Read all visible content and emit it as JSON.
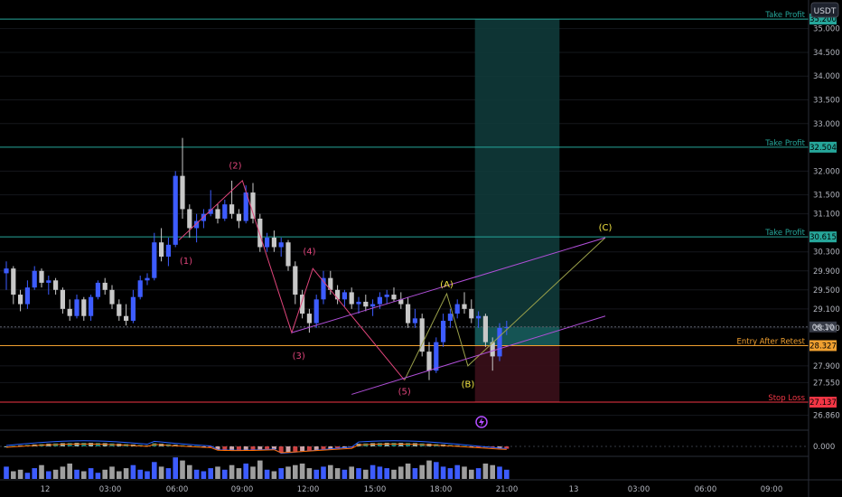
{
  "currency_button": "USDT",
  "chart_data": {
    "type": "candlestick",
    "x_ticks": [
      "12",
      "03:00",
      "06:00",
      "09:00",
      "12:00",
      "15:00",
      "18:00",
      "21:00",
      "13",
      "03:00",
      "06:00",
      "09:00"
    ],
    "y_ticks": [
      35.0,
      34.5,
      34.0,
      33.5,
      33.0,
      32.0,
      31.5,
      31.1,
      30.3,
      29.9,
      29.5,
      29.1,
      28.7,
      27.9,
      27.55,
      26.86
    ],
    "y_tick_labels": [
      "35.000",
      "34.500",
      "34.000",
      "33.500",
      "33.000",
      "32.000",
      "31.500",
      "31.100",
      "30.300",
      "29.900",
      "29.500",
      "29.100",
      "28.700",
      "27.900",
      "27.550",
      "26.860"
    ],
    "current_price": {
      "value": 28.72,
      "label": "06:10"
    },
    "candles": [
      {
        "t": 0,
        "o": 29.85,
        "h": 30.1,
        "l": 29.5,
        "c": 29.95
      },
      {
        "t": 1,
        "o": 29.95,
        "h": 30.0,
        "l": 29.2,
        "c": 29.4
      },
      {
        "t": 2,
        "o": 29.4,
        "h": 29.5,
        "l": 29.05,
        "c": 29.2
      },
      {
        "t": 3,
        "o": 29.2,
        "h": 29.7,
        "l": 29.1,
        "c": 29.55
      },
      {
        "t": 4,
        "o": 29.55,
        "h": 30.0,
        "l": 29.5,
        "c": 29.9
      },
      {
        "t": 5,
        "o": 29.9,
        "h": 29.95,
        "l": 29.55,
        "c": 29.65
      },
      {
        "t": 6,
        "o": 29.65,
        "h": 29.8,
        "l": 29.4,
        "c": 29.7
      },
      {
        "t": 7,
        "o": 29.7,
        "h": 29.75,
        "l": 29.4,
        "c": 29.5
      },
      {
        "t": 8,
        "o": 29.5,
        "h": 29.55,
        "l": 29.0,
        "c": 29.1
      },
      {
        "t": 9,
        "o": 29.1,
        "h": 29.3,
        "l": 28.85,
        "c": 28.95
      },
      {
        "t": 10,
        "o": 28.95,
        "h": 29.4,
        "l": 28.9,
        "c": 29.3
      },
      {
        "t": 11,
        "o": 29.3,
        "h": 29.35,
        "l": 28.85,
        "c": 28.95
      },
      {
        "t": 12,
        "o": 28.95,
        "h": 29.4,
        "l": 28.85,
        "c": 29.35
      },
      {
        "t": 13,
        "o": 29.35,
        "h": 29.7,
        "l": 29.3,
        "c": 29.65
      },
      {
        "t": 14,
        "o": 29.65,
        "h": 29.75,
        "l": 29.4,
        "c": 29.5
      },
      {
        "t": 15,
        "o": 29.5,
        "h": 29.6,
        "l": 29.1,
        "c": 29.2
      },
      {
        "t": 16,
        "o": 29.2,
        "h": 29.3,
        "l": 28.85,
        "c": 28.95
      },
      {
        "t": 17,
        "o": 28.95,
        "h": 29.2,
        "l": 28.75,
        "c": 28.85
      },
      {
        "t": 18,
        "o": 28.85,
        "h": 29.5,
        "l": 28.8,
        "c": 29.35
      },
      {
        "t": 19,
        "o": 29.35,
        "h": 29.8,
        "l": 29.3,
        "c": 29.7
      },
      {
        "t": 20,
        "o": 29.7,
        "h": 29.85,
        "l": 29.6,
        "c": 29.75
      },
      {
        "t": 21,
        "o": 29.75,
        "h": 30.7,
        "l": 29.7,
        "c": 30.5
      },
      {
        "t": 22,
        "o": 30.5,
        "h": 30.8,
        "l": 30.1,
        "c": 30.2
      },
      {
        "t": 23,
        "o": 30.2,
        "h": 30.6,
        "l": 30.0,
        "c": 30.45
      },
      {
        "t": 24,
        "o": 30.45,
        "h": 32.0,
        "l": 30.4,
        "c": 31.9
      },
      {
        "t": 25,
        "o": 31.9,
        "h": 32.7,
        "l": 31.0,
        "c": 31.2
      },
      {
        "t": 26,
        "o": 31.2,
        "h": 31.3,
        "l": 30.6,
        "c": 30.8
      },
      {
        "t": 27,
        "o": 30.8,
        "h": 31.1,
        "l": 30.5,
        "c": 30.95
      },
      {
        "t": 28,
        "o": 30.95,
        "h": 31.2,
        "l": 30.8,
        "c": 31.1
      },
      {
        "t": 29,
        "o": 31.1,
        "h": 31.6,
        "l": 31.05,
        "c": 31.2
      },
      {
        "t": 30,
        "o": 31.2,
        "h": 31.3,
        "l": 30.9,
        "c": 31.0
      },
      {
        "t": 31,
        "o": 31.0,
        "h": 31.4,
        "l": 30.95,
        "c": 31.3
      },
      {
        "t": 32,
        "o": 31.3,
        "h": 31.8,
        "l": 31.0,
        "c": 31.1
      },
      {
        "t": 33,
        "o": 31.1,
        "h": 31.2,
        "l": 30.8,
        "c": 30.95
      },
      {
        "t": 34,
        "o": 30.95,
        "h": 31.7,
        "l": 30.9,
        "c": 31.55
      },
      {
        "t": 35,
        "o": 31.55,
        "h": 31.75,
        "l": 30.9,
        "c": 31.0
      },
      {
        "t": 36,
        "o": 31.0,
        "h": 31.1,
        "l": 30.3,
        "c": 30.4
      },
      {
        "t": 37,
        "o": 30.4,
        "h": 30.7,
        "l": 30.3,
        "c": 30.6
      },
      {
        "t": 38,
        "o": 30.6,
        "h": 30.75,
        "l": 30.3,
        "c": 30.4
      },
      {
        "t": 39,
        "o": 30.4,
        "h": 30.6,
        "l": 30.2,
        "c": 30.5
      },
      {
        "t": 40,
        "o": 30.5,
        "h": 30.55,
        "l": 29.9,
        "c": 30.0
      },
      {
        "t": 41,
        "o": 30.0,
        "h": 30.1,
        "l": 29.2,
        "c": 29.4
      },
      {
        "t": 42,
        "o": 29.4,
        "h": 29.5,
        "l": 28.9,
        "c": 29.0
      },
      {
        "t": 43,
        "o": 29.0,
        "h": 29.1,
        "l": 28.6,
        "c": 28.8
      },
      {
        "t": 44,
        "o": 28.8,
        "h": 29.4,
        "l": 28.7,
        "c": 29.3
      },
      {
        "t": 45,
        "o": 29.3,
        "h": 29.9,
        "l": 29.2,
        "c": 29.75
      },
      {
        "t": 46,
        "o": 29.75,
        "h": 29.9,
        "l": 29.4,
        "c": 29.5
      },
      {
        "t": 47,
        "o": 29.5,
        "h": 29.6,
        "l": 29.2,
        "c": 29.3
      },
      {
        "t": 48,
        "o": 29.3,
        "h": 29.5,
        "l": 29.15,
        "c": 29.45
      },
      {
        "t": 49,
        "o": 29.45,
        "h": 29.55,
        "l": 29.1,
        "c": 29.2
      },
      {
        "t": 50,
        "o": 29.2,
        "h": 29.35,
        "l": 29.0,
        "c": 29.25
      },
      {
        "t": 51,
        "o": 29.25,
        "h": 29.4,
        "l": 29.05,
        "c": 29.15
      },
      {
        "t": 52,
        "o": 29.15,
        "h": 29.3,
        "l": 28.95,
        "c": 29.2
      },
      {
        "t": 53,
        "o": 29.2,
        "h": 29.45,
        "l": 29.1,
        "c": 29.35
      },
      {
        "t": 54,
        "o": 29.35,
        "h": 29.5,
        "l": 29.2,
        "c": 29.4
      },
      {
        "t": 55,
        "o": 29.4,
        "h": 29.55,
        "l": 29.25,
        "c": 29.3
      },
      {
        "t": 56,
        "o": 29.3,
        "h": 29.45,
        "l": 29.1,
        "c": 29.2
      },
      {
        "t": 57,
        "o": 29.2,
        "h": 29.35,
        "l": 28.7,
        "c": 28.8
      },
      {
        "t": 58,
        "o": 28.8,
        "h": 29.1,
        "l": 28.7,
        "c": 28.9
      },
      {
        "t": 59,
        "o": 28.9,
        "h": 29.0,
        "l": 28.1,
        "c": 28.2
      },
      {
        "t": 60,
        "o": 28.2,
        "h": 28.4,
        "l": 27.6,
        "c": 27.8
      },
      {
        "t": 61,
        "o": 27.8,
        "h": 28.5,
        "l": 27.75,
        "c": 28.4
      },
      {
        "t": 62,
        "o": 28.4,
        "h": 29.0,
        "l": 28.3,
        "c": 28.85
      },
      {
        "t": 63,
        "o": 28.85,
        "h": 29.1,
        "l": 28.7,
        "c": 29.0
      },
      {
        "t": 64,
        "o": 29.0,
        "h": 29.3,
        "l": 28.9,
        "c": 29.2
      },
      {
        "t": 65,
        "o": 29.2,
        "h": 29.45,
        "l": 29.0,
        "c": 29.1
      },
      {
        "t": 66,
        "o": 29.1,
        "h": 29.3,
        "l": 28.8,
        "c": 28.9
      },
      {
        "t": 67,
        "o": 28.9,
        "h": 29.05,
        "l": 28.7,
        "c": 28.95
      },
      {
        "t": 68,
        "o": 28.95,
        "h": 29.0,
        "l": 28.3,
        "c": 28.4
      },
      {
        "t": 69,
        "o": 28.4,
        "h": 28.5,
        "l": 27.8,
        "c": 28.1
      },
      {
        "t": 70,
        "o": 28.1,
        "h": 28.8,
        "l": 28.0,
        "c": 28.7
      },
      {
        "t": 71,
        "o": 28.7,
        "h": 28.85,
        "l": 28.55,
        "c": 28.72
      }
    ],
    "zones": {
      "entry": 28.327,
      "take_profit_top": 35.2,
      "candle_from": 66.5,
      "candle_to": 78.5,
      "stop": 27.137
    },
    "levels": [
      {
        "name": "Take Profit",
        "value": 35.2,
        "price_label": "35.200",
        "color": "#26a69a"
      },
      {
        "name": "Take Profit",
        "value": 32.504,
        "price_label": "32.504",
        "color": "#26a69a"
      },
      {
        "name": "Take Profit",
        "value": 30.615,
        "price_label": "30.615",
        "color": "#26a69a"
      },
      {
        "name": "Entry After Retest",
        "value": 28.327,
        "price_label": "28.327",
        "color": "#f0a030"
      },
      {
        "name": "Stop Loss",
        "value": 27.137,
        "price_label": "27.137",
        "color": "#f23645"
      }
    ],
    "wave_labels": [
      {
        "text": "(1)",
        "t": 25.5,
        "v": 30.05,
        "color": "#e0457b"
      },
      {
        "text": "(2)",
        "t": 32.5,
        "v": 32.05,
        "color": "#e0457b"
      },
      {
        "text": "(3)",
        "t": 41.5,
        "v": 28.05,
        "color": "#e0457b"
      },
      {
        "text": "(4)",
        "t": 43.0,
        "v": 30.25,
        "color": "#e0457b"
      },
      {
        "text": "(5)",
        "t": 56.5,
        "v": 27.3,
        "color": "#e0457b"
      },
      {
        "text": "(A)",
        "t": 62.5,
        "v": 29.55,
        "color": "#f5e642"
      },
      {
        "text": "(B)",
        "t": 65.5,
        "v": 27.45,
        "color": "#f5e642"
      },
      {
        "text": "(C)",
        "t": 85.0,
        "v": 30.75,
        "color": "#f5e642"
      }
    ],
    "wave_path": [
      {
        "t": 24.5,
        "v": 30.55
      },
      {
        "t": 33.5,
        "v": 31.8
      },
      {
        "t": 40.5,
        "v": 28.6
      },
      {
        "t": 43.5,
        "v": 29.95
      },
      {
        "t": 56.5,
        "v": 27.6
      }
    ],
    "abc_path": [
      {
        "t": 56.5,
        "v": 27.6
      },
      {
        "t": 62.5,
        "v": 29.42
      },
      {
        "t": 65.5,
        "v": 27.9
      },
      {
        "t": 85,
        "v": 30.6
      }
    ],
    "channel_upper": [
      {
        "t": 40.5,
        "v": 28.6
      },
      {
        "t": 85,
        "v": 30.6
      }
    ],
    "channel_lower": [
      {
        "t": 49,
        "v": 27.3
      },
      {
        "t": 85,
        "v": 28.95
      }
    ],
    "oscillator": {
      "zero_label": "0.000"
    },
    "volume": [
      8,
      5,
      6,
      4,
      7,
      9,
      5,
      6,
      8,
      10,
      6,
      5,
      7,
      4,
      6,
      8,
      5,
      7,
      9,
      6,
      5,
      11,
      8,
      7,
      14,
      12,
      9,
      6,
      5,
      7,
      8,
      6,
      9,
      7,
      10,
      8,
      12,
      6,
      5,
      7,
      8,
      9,
      10,
      7,
      6,
      8,
      9,
      7,
      6,
      8,
      7,
      6,
      9,
      8,
      7,
      6,
      8,
      10,
      7,
      9,
      12,
      11,
      8,
      7,
      9,
      8,
      6,
      7,
      10,
      9,
      8,
      6
    ],
    "lightning_icon": "lightning-icon"
  }
}
